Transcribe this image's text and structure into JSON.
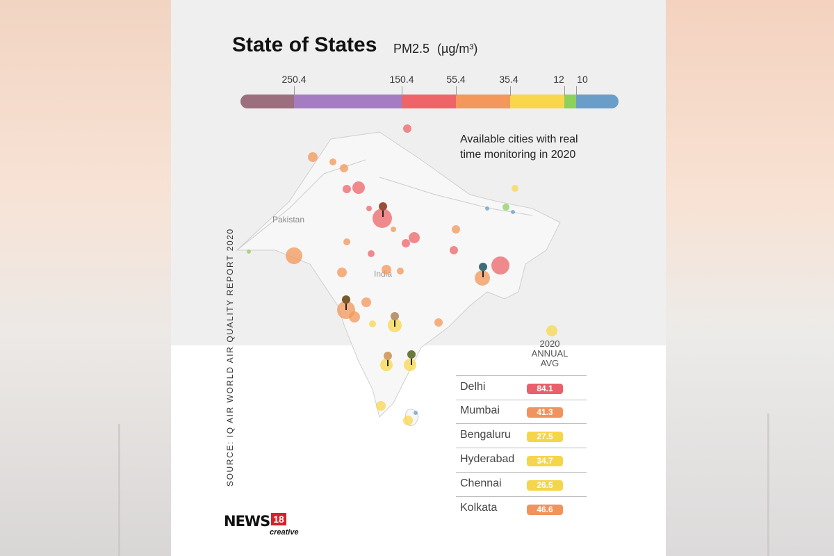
{
  "title": "State of States",
  "pm_label": "PM2.5",
  "unit": "(µg/m³)",
  "scale": {
    "ticks": [
      "250.4",
      "150.4",
      "55.4",
      "35.4",
      "12",
      "10"
    ],
    "colors": [
      "#9b6f7d",
      "#a57bc1",
      "#ee6468",
      "#f3975a",
      "#f8d74c",
      "#8ed05c",
      "#6a9ec8"
    ]
  },
  "caption_line1": "Available cities with real",
  "caption_line2": "time monitoring in 2020",
  "source": "SOURCE: IQ AIR WORLD AIR QUALITY REPORT 2020",
  "map_labels": {
    "pakistan": "Pakistan",
    "india": "India"
  },
  "table": {
    "header_line1": "2020",
    "header_line2": "ANNUAL",
    "header_line3": "AVG",
    "rows": [
      {
        "city": "Delhi",
        "value": "84.1",
        "color": "#e9606a"
      },
      {
        "city": "Mumbai",
        "value": "41.3",
        "color": "#f1935c"
      },
      {
        "city": "Bengaluru",
        "value": "27.5",
        "color": "#f5d54a"
      },
      {
        "city": "Hyderabad",
        "value": "34.7",
        "color": "#f5d54a"
      },
      {
        "city": "Chennai",
        "value": "26.5",
        "color": "#f5d54a"
      },
      {
        "city": "Kolkata",
        "value": "46.6",
        "color": "#f1935c"
      }
    ]
  },
  "logo": {
    "brand": "NEWS",
    "number": "18",
    "sub": "creative"
  }
}
